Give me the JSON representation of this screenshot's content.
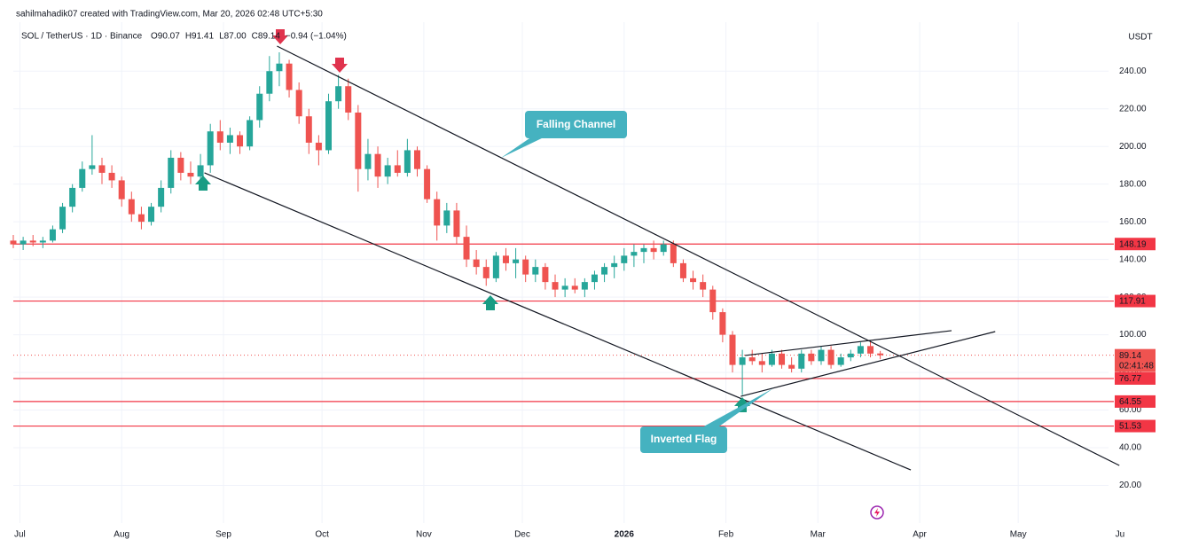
{
  "header": {
    "credit": "sahilmahadik07 created with TradingView.com, Mar 20, 2026 02:48 UTC+5:30",
    "ohlc": [
      "O90.07",
      "H91.41",
      "L87.00",
      "C89.14",
      "−0.94 (−1.04%)"
    ]
  },
  "chart_data": {
    "type": "candlestick",
    "title": "SOL / TetherUS · 1D · Binance",
    "currency": "USDT",
    "up_color": "#26a69a",
    "down_color": "#ef5350",
    "grid": true,
    "xlim": [
      -2,
      331.5
    ],
    "ylim": [
      0,
      266
    ],
    "xticks": [
      {
        "value": 0,
        "label": "Jul"
      },
      {
        "value": 31,
        "label": "Aug"
      },
      {
        "value": 62,
        "label": "Sep"
      },
      {
        "value": 92,
        "label": "Oct"
      },
      {
        "value": 123,
        "label": "Nov"
      },
      {
        "value": 153,
        "label": "Dec"
      },
      {
        "value": 184,
        "label": "2026"
      },
      {
        "value": 215,
        "label": "Feb"
      },
      {
        "value": 243,
        "label": "Mar"
      },
      {
        "value": 274,
        "label": "Apr"
      },
      {
        "value": 304,
        "label": "May"
      },
      {
        "value": 335,
        "label": "Ju"
      }
    ],
    "yticks": [
      {
        "value": 20,
        "label": "20.00"
      },
      {
        "value": 40,
        "label": "40.00"
      },
      {
        "value": 60,
        "label": "60.00"
      },
      {
        "value": 80,
        "label": "80.00"
      },
      {
        "value": 100,
        "label": "100.00"
      },
      {
        "value": 120,
        "label": "120.00"
      },
      {
        "value": 140,
        "label": "140.00"
      },
      {
        "value": 160,
        "label": "160.00"
      },
      {
        "value": 180,
        "label": "180.00"
      },
      {
        "value": 200,
        "label": "200.00"
      },
      {
        "value": 220,
        "label": "220.00"
      },
      {
        "value": 240,
        "label": "240.00"
      }
    ],
    "x": [
      -2,
      1,
      4,
      7,
      10,
      13,
      16,
      19,
      22,
      25,
      28,
      31,
      34,
      37,
      40,
      43,
      46,
      49,
      52,
      55,
      58,
      61,
      64,
      67,
      70,
      73,
      76,
      79,
      82,
      85,
      88,
      91,
      94,
      97,
      100,
      103,
      106,
      109,
      112,
      115,
      118,
      121,
      124,
      127,
      130,
      133,
      136,
      139,
      142,
      145,
      148,
      151,
      154,
      157,
      160,
      163,
      166,
      169,
      172,
      175,
      178,
      181,
      184,
      187,
      190,
      193,
      196,
      199,
      202,
      205,
      208,
      211,
      214,
      217,
      220,
      223,
      226,
      229,
      232,
      235,
      238,
      241,
      244,
      247,
      250,
      253,
      256,
      259,
      262
    ],
    "open": [
      150,
      148,
      150,
      149,
      150,
      156,
      168,
      178,
      188,
      190,
      186,
      182,
      172,
      164,
      160,
      168,
      178,
      194,
      186,
      184,
      190,
      208,
      202,
      206,
      200,
      214,
      228,
      240,
      244,
      230,
      216,
      202,
      198,
      224,
      232,
      218,
      188,
      196,
      184,
      190,
      186,
      198,
      188,
      172,
      158,
      166,
      152,
      140,
      136,
      130,
      142,
      138,
      140,
      132,
      136,
      128,
      124,
      126,
      124,
      128,
      132,
      136,
      138,
      142,
      144,
      146,
      144,
      148,
      138,
      130,
      128,
      124,
      112,
      100,
      84,
      88,
      86,
      84,
      90,
      84,
      82,
      90,
      86,
      92,
      84,
      88,
      90,
      94,
      90.07
    ],
    "high": [
      153,
      152,
      153,
      152,
      158,
      170,
      180,
      192,
      206,
      194,
      190,
      184,
      176,
      168,
      170,
      182,
      198,
      197,
      192,
      196,
      212,
      214,
      210,
      208,
      216,
      232,
      248,
      250,
      246,
      234,
      220,
      206,
      228,
      238,
      236,
      222,
      204,
      200,
      194,
      198,
      204,
      200,
      190,
      176,
      170,
      170,
      158,
      145,
      140,
      144,
      146,
      146,
      142,
      140,
      138,
      132,
      130,
      130,
      130,
      134,
      138,
      142,
      146,
      148,
      148,
      150,
      150,
      150,
      140,
      134,
      132,
      126,
      114,
      102,
      92,
      92,
      90,
      92,
      92,
      88,
      92,
      92,
      94,
      94,
      90,
      92,
      96,
      97,
      91.41
    ],
    "low": [
      146,
      145,
      147,
      146,
      149,
      154,
      165,
      176,
      185,
      180,
      178,
      168,
      160,
      156,
      158,
      165,
      175,
      182,
      180,
      178,
      186,
      198,
      196,
      196,
      198,
      210,
      224,
      232,
      226,
      212,
      196,
      190,
      196,
      220,
      214,
      176,
      182,
      178,
      180,
      184,
      184,
      184,
      170,
      150,
      154,
      148,
      136,
      132,
      126,
      128,
      134,
      130,
      128,
      128,
      124,
      120,
      120,
      122,
      120,
      124,
      128,
      130,
      134,
      136,
      138,
      140,
      142,
      136,
      128,
      124,
      120,
      108,
      96,
      80,
      68,
      84,
      80,
      83,
      82,
      80,
      80,
      84,
      84,
      82,
      83,
      86,
      88,
      88,
      87.0
    ],
    "close": [
      148,
      150,
      149,
      150,
      156,
      168,
      178,
      188,
      190,
      186,
      182,
      172,
      164,
      160,
      168,
      178,
      194,
      186,
      184,
      190,
      208,
      202,
      206,
      200,
      214,
      228,
      240,
      244,
      230,
      216,
      202,
      198,
      224,
      232,
      218,
      188,
      196,
      184,
      190,
      186,
      198,
      188,
      172,
      158,
      166,
      152,
      140,
      136,
      130,
      142,
      138,
      140,
      132,
      136,
      128,
      124,
      126,
      124,
      128,
      132,
      136,
      138,
      142,
      144,
      146,
      144,
      148,
      138,
      130,
      128,
      124,
      112,
      100,
      84,
      88,
      86,
      84,
      90,
      84,
      82,
      90,
      86,
      92,
      84,
      88,
      90,
      94,
      90,
      89.14
    ],
    "levels": [
      148.19,
      117.91,
      76.77,
      64.55,
      51.53
    ],
    "level_color": "#f23645",
    "countdown": "02:41:48",
    "lines": [
      {
        "x": [
          78.3,
          334.8
        ],
        "y": [
          253.3,
          30.6
        ]
      },
      {
        "x": [
          56.2,
          271.3
        ],
        "y": [
          186.0,
          28.2
        ]
      },
      {
        "x": [
          220.8,
          283.7
        ],
        "y": [
          89.0,
          102.2
        ]
      },
      {
        "x": [
          219.5,
          297.0
        ],
        "y": [
          67.3,
          101.7
        ]
      }
    ],
    "annotations": [
      "Falling Channel",
      "Inverted Flag"
    ]
  }
}
